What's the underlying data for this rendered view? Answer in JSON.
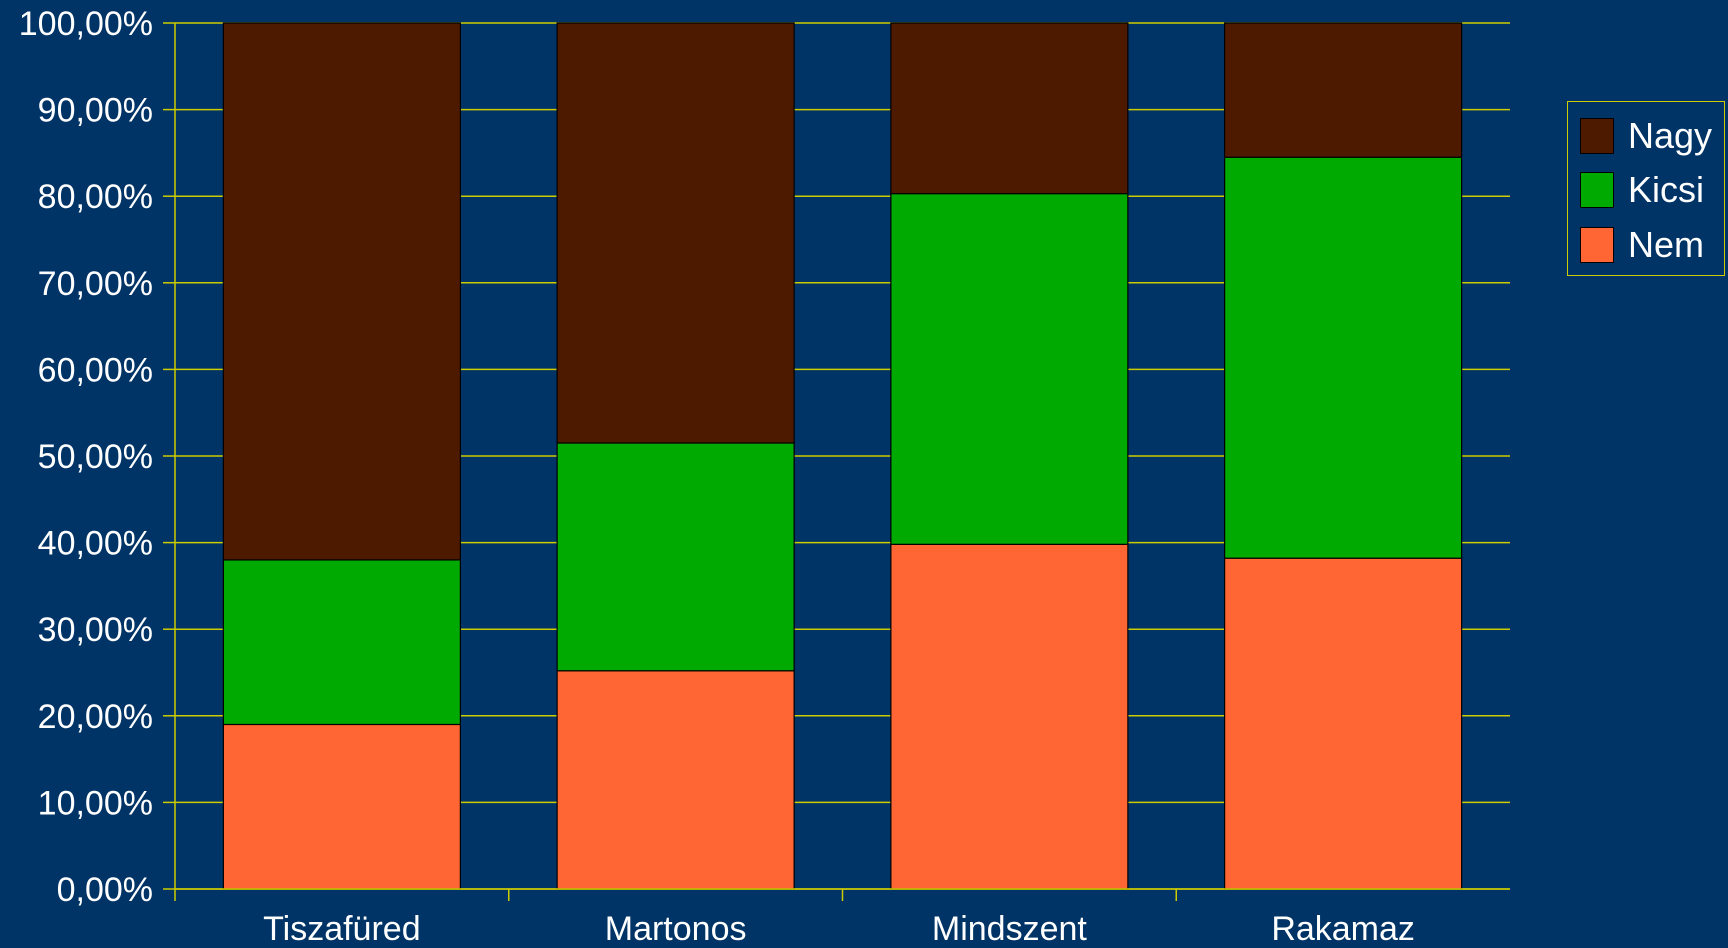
{
  "chart_data": {
    "type": "bar",
    "stacked": true,
    "categories": [
      "Tiszafüred",
      "Martonos",
      "Mindszent",
      "Rakamaz"
    ],
    "series": [
      {
        "name": "Nem",
        "color": "#ff6633",
        "values": [
          19.0,
          25.2,
          39.8,
          38.2
        ]
      },
      {
        "name": "Kicsi",
        "color": "#00aa00",
        "values": [
          19.0,
          26.3,
          40.5,
          46.3
        ]
      },
      {
        "name": "Nagy",
        "color": "#4d1a00",
        "values": [
          62.0,
          48.5,
          19.7,
          15.5
        ]
      }
    ],
    "ylim": [
      0,
      100
    ],
    "yticks": [
      "0,00%",
      "10,00%",
      "20,00%",
      "30,00%",
      "40,00%",
      "50,00%",
      "60,00%",
      "70,00%",
      "80,00%",
      "90,00%",
      "100,00%"
    ],
    "grid": true,
    "legend_position": "right",
    "background": "#003366",
    "gridline_color": "#cccc00"
  },
  "legend": [
    {
      "name": "Nagy",
      "color": "#4d1a00"
    },
    {
      "name": "Kicsi",
      "color": "#00aa00"
    },
    {
      "name": "Nem",
      "color": "#ff6633"
    }
  ]
}
